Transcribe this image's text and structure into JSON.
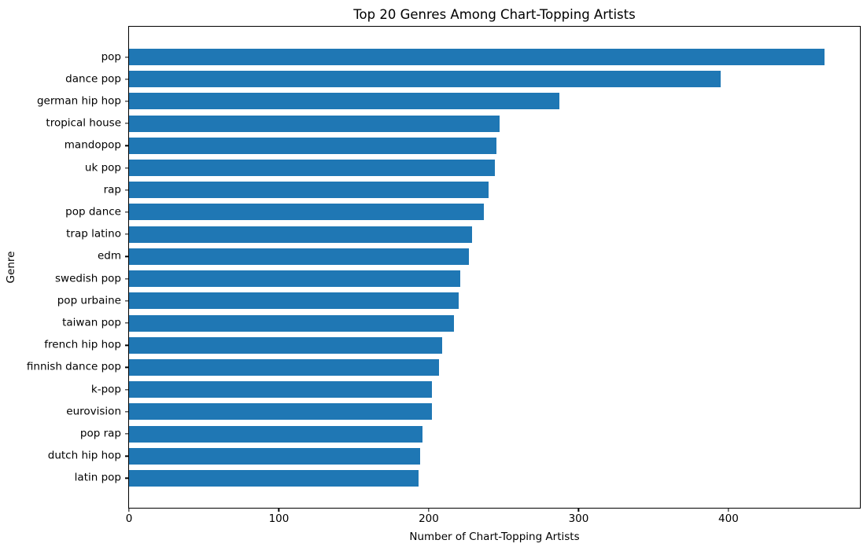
{
  "chart_data": {
    "type": "bar",
    "orientation": "horizontal",
    "title": "Top 20 Genres Among Chart-Topping Artists",
    "xlabel": "Number of Chart-Topping Artists",
    "ylabel": "Genre",
    "categories": [
      "pop",
      "dance pop",
      "german hip hop",
      "tropical house",
      "mandopop",
      "uk pop",
      "rap",
      "pop dance",
      "trap latino",
      "edm",
      "swedish pop",
      "pop urbaine",
      "taiwan pop",
      "french hip hop",
      "finnish dance pop",
      "k-pop",
      "eurovision",
      "pop rap",
      "dutch hip hop",
      "latin pop"
    ],
    "values": [
      464,
      395,
      287,
      247,
      245,
      244,
      240,
      237,
      229,
      227,
      221,
      220,
      217,
      209,
      207,
      202,
      202,
      196,
      194,
      193
    ],
    "xticks": [
      0,
      100,
      200,
      300,
      400
    ],
    "xlim": [
      0,
      487.7
    ],
    "bar_color": "#1f77b4",
    "text_color": "#000000",
    "background_color": "#ffffff",
    "grid": false,
    "legend": null
  }
}
